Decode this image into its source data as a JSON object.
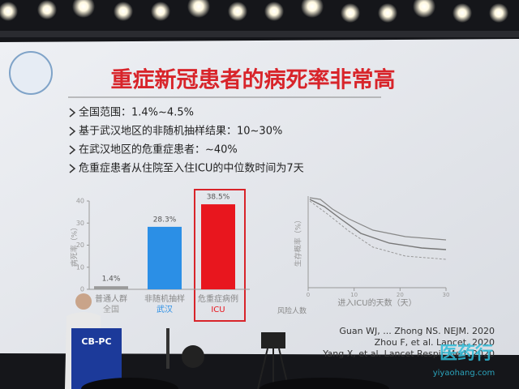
{
  "slide": {
    "title": "重症新冠患者的病死率非常高",
    "bullets": [
      "全国范围：1.4%~4.5%",
      "基于武汉地区的非随机抽样结果：10~30%",
      "在武汉地区的危重症患者：~40%",
      "危重症患者从住院至入住ICU的中位数时间为7天"
    ],
    "bar_chart": {
      "type": "bar",
      "y_label": "病死率（%）",
      "categories": [
        "普通人群",
        "非随机抽样",
        "危重症病例"
      ],
      "sublabels": [
        "全国",
        "武汉",
        "ICU"
      ],
      "values": [
        1.4,
        28.3,
        38.5
      ],
      "value_labels": [
        "1.4%",
        "28.3%",
        "38.5%"
      ],
      "colors": [
        "#9a9a9a",
        "#2b8fe6",
        "#e8161e"
      ],
      "ylim": [
        0,
        40
      ],
      "yticks": [
        0,
        10,
        20,
        30,
        40
      ]
    },
    "survival_chart": {
      "y_label": "生存概率（%）",
      "x_label": "进入ICU的天数（天）",
      "risk_label": "风险人数",
      "xticks": [
        0,
        10,
        20,
        30
      ],
      "xlim": [
        0,
        30
      ]
    },
    "references": [
      "Guan WJ, ... Zhong NS. NEJM. 2020",
      "Zhou F, et al. Lancet. 2020",
      "Yang X, et al. Lancet Respir Med. 2020"
    ]
  },
  "podium": "CB-PC",
  "watermark": {
    "name": "医药行",
    "url": "yiyaohang.com"
  }
}
